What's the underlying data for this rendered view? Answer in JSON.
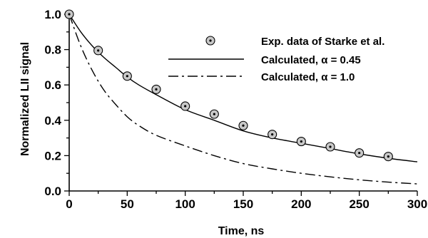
{
  "chart_data": {
    "type": "line",
    "xlabel": "Time, ns",
    "ylabel": "Normalized LII signal",
    "xlim": [
      0,
      300
    ],
    "ylim": [
      0,
      1.0
    ],
    "x_ticks": [
      "0",
      "50",
      "100",
      "150",
      "200",
      "250",
      "300"
    ],
    "y_ticks": [
      "0.0",
      "0.2",
      "0.4",
      "0.6",
      "0.8",
      "1.0"
    ],
    "grid": false,
    "legend_position": "top-right",
    "series": [
      {
        "name": "Exp. data of Starke et al.",
        "style": "markers",
        "x": [
          0,
          25,
          50,
          75,
          100,
          125,
          150,
          175,
          200,
          225,
          250,
          275
        ],
        "y": [
          1.0,
          0.795,
          0.65,
          0.575,
          0.48,
          0.435,
          0.37,
          0.32,
          0.28,
          0.25,
          0.215,
          0.195
        ]
      },
      {
        "name": "Calculated, α = 0.45",
        "style": "solid",
        "x": [
          0,
          10,
          20,
          30,
          40,
          50,
          60,
          75,
          100,
          125,
          150,
          175,
          200,
          225,
          250,
          275,
          300
        ],
        "y": [
          1.0,
          0.9,
          0.82,
          0.755,
          0.7,
          0.645,
          0.6,
          0.545,
          0.46,
          0.4,
          0.34,
          0.3,
          0.27,
          0.24,
          0.21,
          0.185,
          0.165
        ]
      },
      {
        "name": "Calculated, α = 1.0",
        "style": "dash-dot",
        "x": [
          0,
          10,
          20,
          30,
          40,
          50,
          60,
          75,
          100,
          125,
          150,
          175,
          200,
          225,
          250,
          275,
          300
        ],
        "y": [
          1.0,
          0.82,
          0.68,
          0.57,
          0.49,
          0.42,
          0.37,
          0.315,
          0.255,
          0.2,
          0.155,
          0.125,
          0.1,
          0.08,
          0.063,
          0.05,
          0.04
        ]
      }
    ]
  }
}
